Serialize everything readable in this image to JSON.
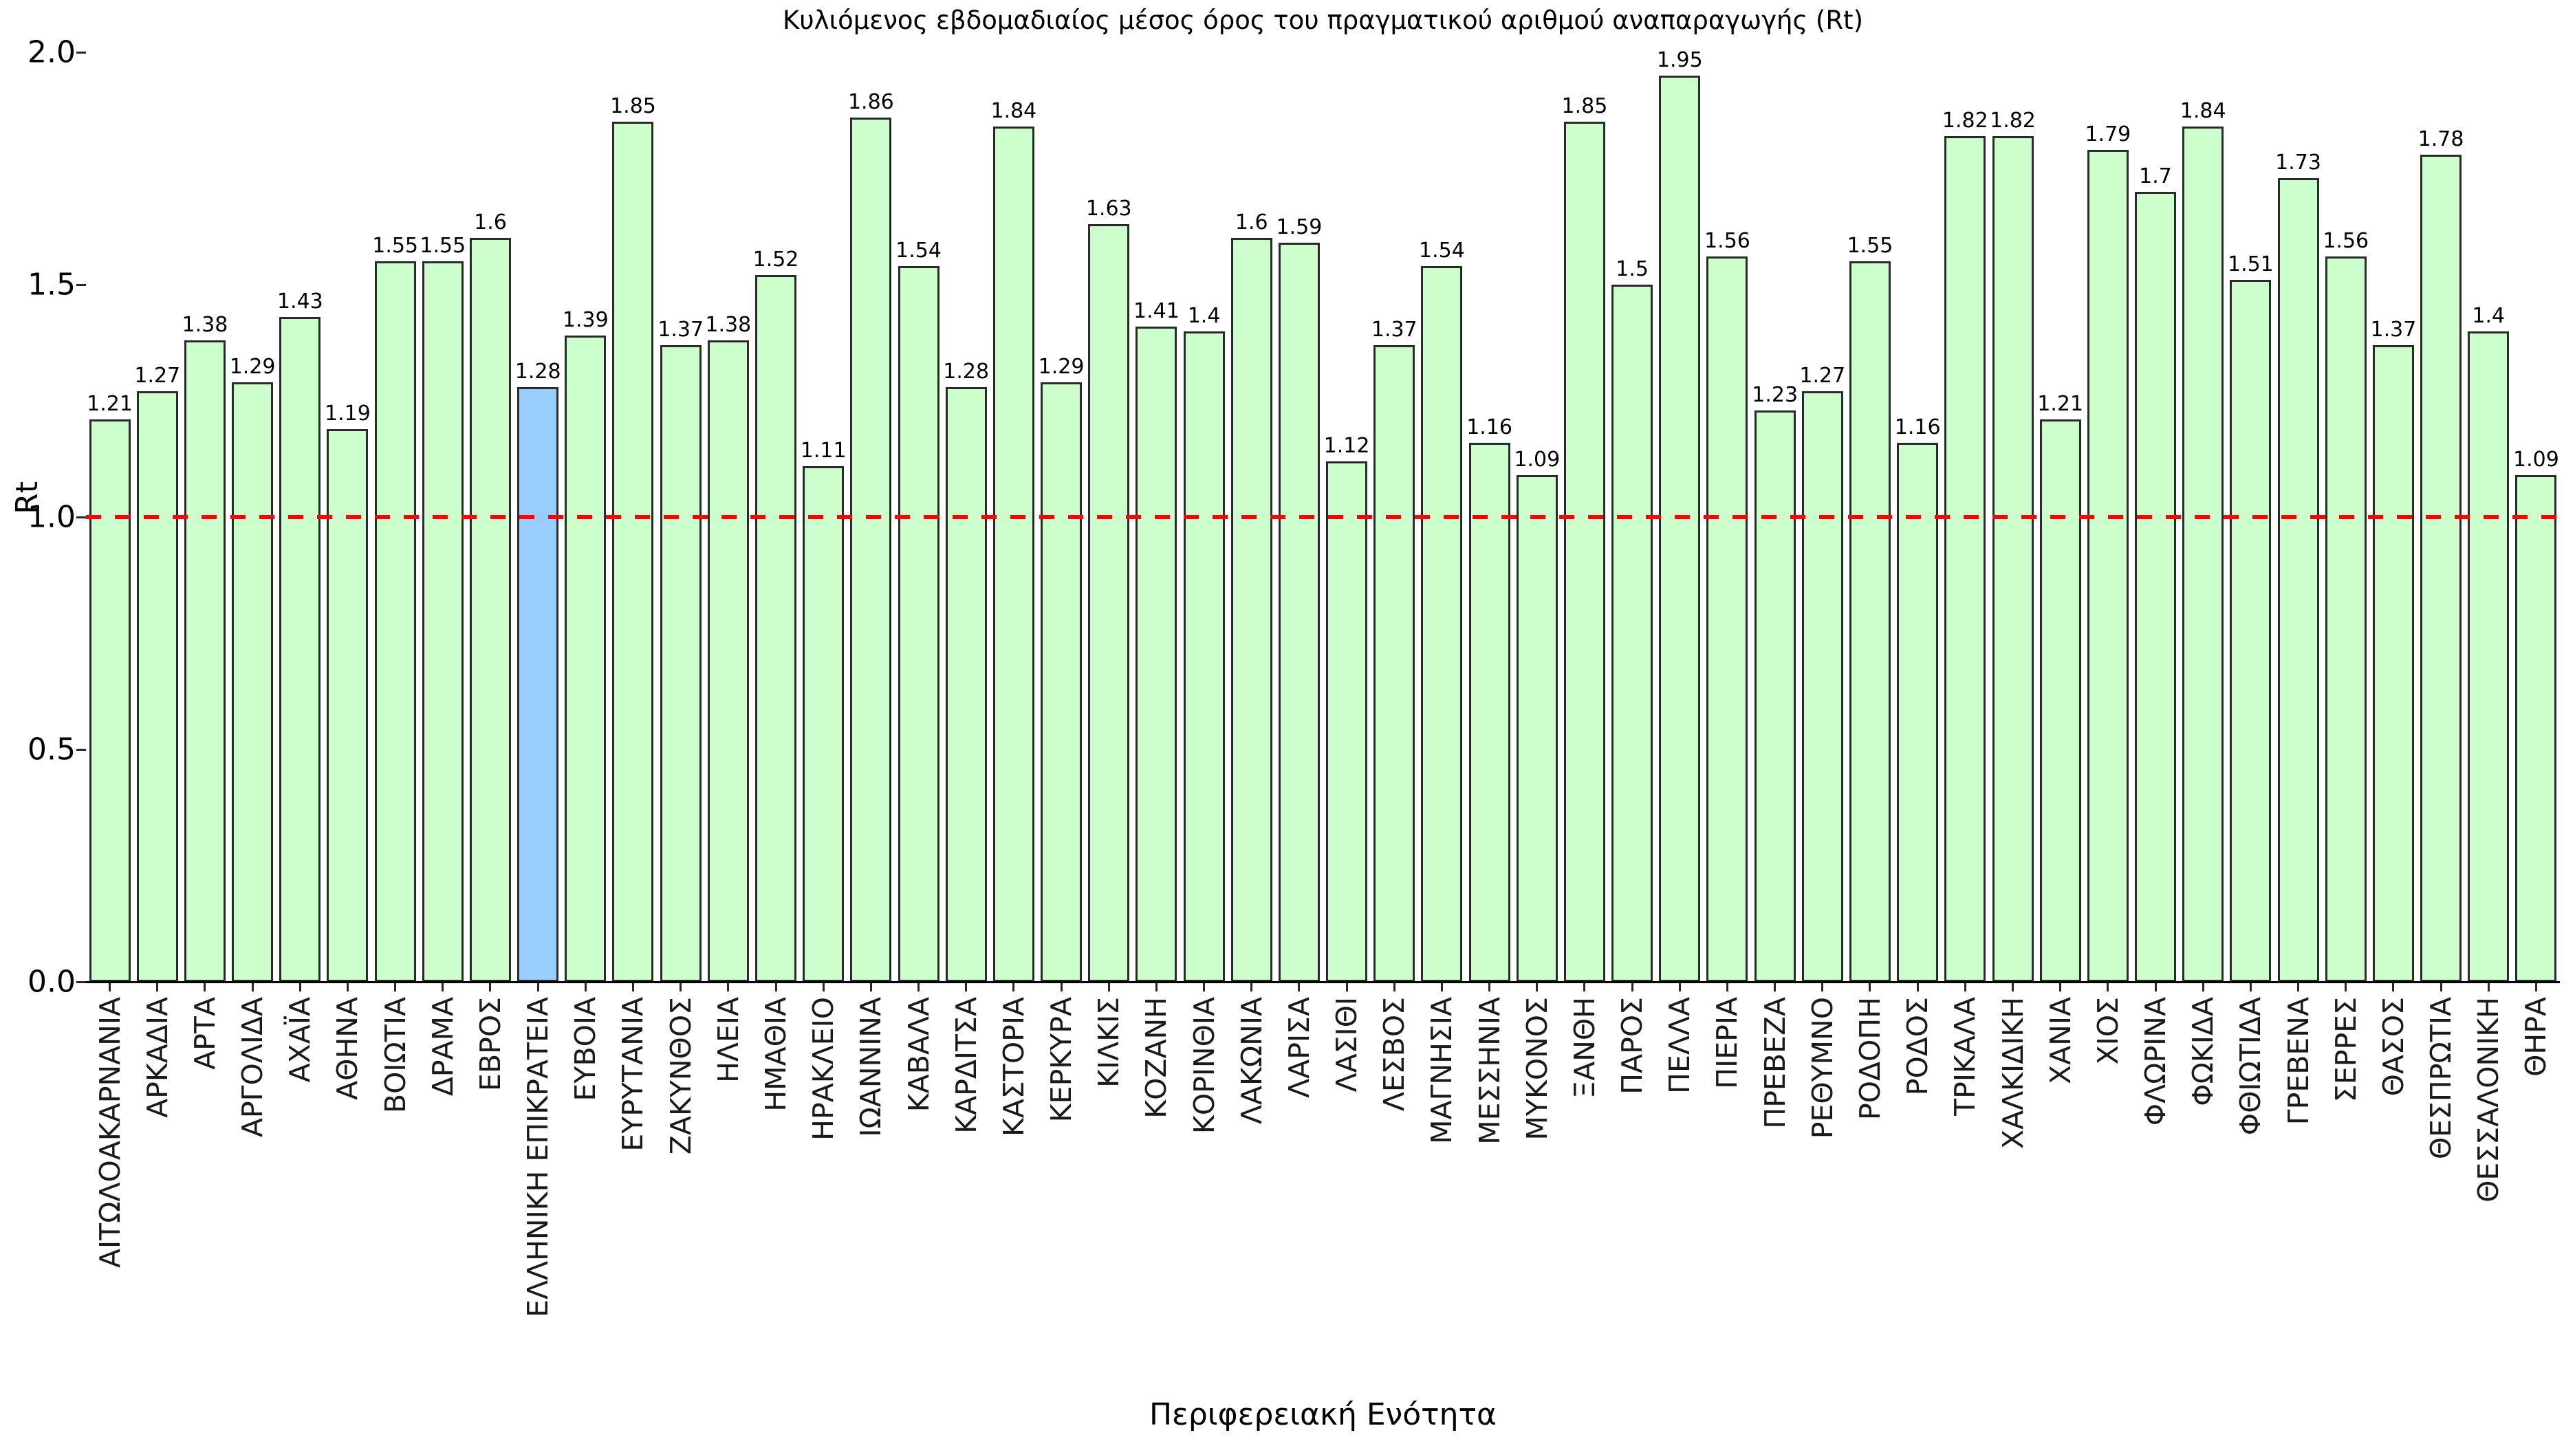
{
  "chart_data": {
    "type": "bar",
    "title": "Κυλιόμενος εβδομαδιαίος μέσος όρος του πραγματικού αριθμού αναπαραγωγής (Rt)",
    "xlabel": "Περιφερειακή Ενότητα",
    "ylabel": "Rt",
    "ylim": [
      0.0,
      2.0
    ],
    "yticks": [
      "0.0",
      "0.5",
      "1.0",
      "1.5",
      "2.0"
    ],
    "grid": false,
    "legend": "none",
    "reference_line": {
      "y": 1.0,
      "color": "#ff0000",
      "style": "dashed"
    },
    "highlight_category": "ΕΛΛΗΝΙΚΗ ΕΠΙΚΡΑΤΕΙΑ",
    "colors": {
      "bar_fill": "#ccffcc",
      "highlight_fill": "#99ccff",
      "bar_border": "#2a2a2a",
      "reference": "#ff0000"
    },
    "categories": [
      "ΑΙΤΩΛΟΑΚΑΡΝΑΝΙΑ",
      "ΑΡΚΑΔΙΑ",
      "ΑΡΤΑ",
      "ΑΡΓΟΛΙΔΑ",
      "ΑΧΑΪΑ",
      "ΑΘΗΝΑ",
      "ΒΟΙΩΤΙΑ",
      "ΔΡΑΜΑ",
      "ΕΒΡΟΣ",
      "ΕΛΛΗΝΙΚΗ ΕΠΙΚΡΑΤΕΙΑ",
      "ΕΥΒΟΙΑ",
      "ΕΥΡΥΤΑΝΙΑ",
      "ΖΑΚΥΝΘΟΣ",
      "ΗΛΕΙΑ",
      "ΗΜΑΘΙΑ",
      "ΗΡΑΚΛΕΙΟ",
      "ΙΩΑΝΝΙΝΑ",
      "ΚΑΒΑΛΑ",
      "ΚΑΡΔΙΤΣΑ",
      "ΚΑΣΤΟΡΙΑ",
      "ΚΕΡΚΥΡΑ",
      "ΚΙΛΚΙΣ",
      "ΚΟΖΑΝΗ",
      "ΚΟΡΙΝΘΙΑ",
      "ΛΑΚΩΝΙΑ",
      "ΛΑΡΙΣΑ",
      "ΛΑΣΙΘΙ",
      "ΛΕΣΒΟΣ",
      "ΜΑΓΝΗΣΙΑ",
      "ΜΕΣΣΗΝΙΑ",
      "ΜΥΚΟΝΟΣ",
      "ΞΑΝΘΗ",
      "ΠΑΡΟΣ",
      "ΠΕΛΛΑ",
      "ΠΙΕΡΙΑ",
      "ΠΡΕΒΕΖΑ",
      "ΡΕΘΥΜΝΟ",
      "ΡΟΔΟΠΗ",
      "ΡΟΔΟΣ",
      "ΤΡΙΚΑΛΑ",
      "ΧΑΛΚΙΔΙΚΗ",
      "ΧΑΝΙΑ",
      "ΧΙΟΣ",
      "ΦΛΩΡΙΝΑ",
      "ΦΩΚΙΔΑ",
      "ΦΘΙΩΤΙΔΑ",
      "ΓΡΕΒΕΝΑ",
      "ΣΕΡΡΕΣ",
      "ΘΑΣΟΣ",
      "ΘΕΣΠΡΩΤΙΑ",
      "ΘΕΣΣΑΛΟΝΙΚΗ",
      "ΘΗΡΑ"
    ],
    "values": [
      1.21,
      1.27,
      1.38,
      1.29,
      1.43,
      1.19,
      1.55,
      1.55,
      1.6,
      1.28,
      1.39,
      1.85,
      1.37,
      1.38,
      1.52,
      1.11,
      1.86,
      1.54,
      1.28,
      1.84,
      1.29,
      1.63,
      1.41,
      1.4,
      1.6,
      1.59,
      1.12,
      1.37,
      1.54,
      1.16,
      1.09,
      1.85,
      1.5,
      1.95,
      1.56,
      1.23,
      1.27,
      1.55,
      1.16,
      1.82,
      1.82,
      1.21,
      1.79,
      1.7,
      1.84,
      1.51,
      1.73,
      1.56,
      1.37,
      1.78,
      1.4,
      1.09
    ],
    "value_labels": [
      "1.21",
      "1.27",
      "1.38",
      "1.29",
      "1.43",
      "1.19",
      "1.55",
      "1.55",
      "1.6",
      "1.28",
      "1.39",
      "1.85",
      "1.37",
      "1.38",
      "1.52",
      "1.11",
      "1.86",
      "1.54",
      "1.28",
      "1.84",
      "1.29",
      "1.63",
      "1.41",
      "1.4",
      "1.6",
      "1.59",
      "1.12",
      "1.37",
      "1.54",
      "1.16",
      "1.09",
      "1.85",
      "1.5",
      "1.95",
      "1.56",
      "1.23",
      "1.27",
      "1.55",
      "1.16",
      "1.82",
      "1.82",
      "1.21",
      "1.79",
      "1.7",
      "1.84",
      "1.51",
      "1.73",
      "1.56",
      "1.37",
      "1.78",
      "1.4",
      "1.09"
    ]
  }
}
